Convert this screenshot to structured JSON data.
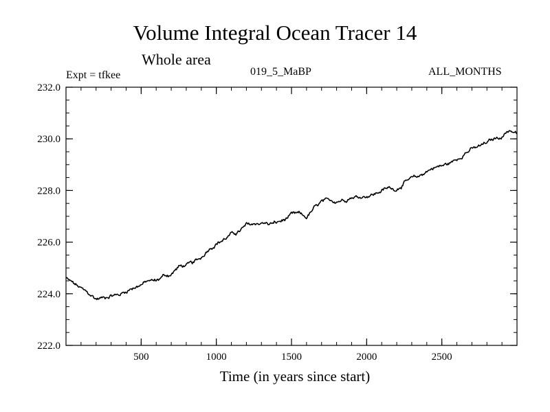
{
  "chart_data": {
    "type": "line",
    "title": "Volume Integral Ocean Tracer 14",
    "subtitle": "Whole area",
    "header_left": "Expt = tfkee",
    "header_center": "019_5_MaBP",
    "header_right": "ALL_MONTHS",
    "xlabel": "Time (in years since start)",
    "ylabel": "",
    "xlim": [
      0,
      3000
    ],
    "ylim": [
      222.0,
      232.0
    ],
    "x_ticks": [
      {
        "value": 500,
        "label": "500"
      },
      {
        "value": 1000,
        "label": "1000"
      },
      {
        "value": 1500,
        "label": "1500"
      },
      {
        "value": 2000,
        "label": "2000"
      },
      {
        "value": 2500,
        "label": "2500"
      }
    ],
    "x_minor_step": 100,
    "y_ticks": [
      {
        "value": 222.0,
        "label": "222.0"
      },
      {
        "value": 224.0,
        "label": "224.0"
      },
      {
        "value": 226.0,
        "label": "226.0"
      },
      {
        "value": 228.0,
        "label": "228.0"
      },
      {
        "value": 230.0,
        "label": "230.0"
      },
      {
        "value": 232.0,
        "label": "232.0"
      }
    ],
    "y_minor_step": 0.5,
    "grid": false,
    "legend": "none",
    "line_color": "#000000",
    "series": [
      {
        "x": [
          0,
          50,
          100,
          150,
          200,
          250,
          300,
          350,
          400,
          450,
          500,
          550,
          600,
          650,
          700,
          750,
          800,
          850,
          900,
          950,
          1000,
          1050,
          1100,
          1150,
          1200,
          1250,
          1300,
          1350,
          1400,
          1450,
          1500,
          1550,
          1600,
          1650,
          1700,
          1750,
          1800,
          1850,
          1900,
          1950,
          2000,
          2050,
          2100,
          2150,
          2200,
          2250,
          2300,
          2350,
          2400,
          2450,
          2500,
          2550,
          2600,
          2650,
          2700,
          2750,
          2800,
          2850,
          2900,
          2950,
          3000
        ],
        "values": [
          224.6,
          224.4,
          224.2,
          224.0,
          223.8,
          223.85,
          223.95,
          223.95,
          224.1,
          224.25,
          224.35,
          224.5,
          224.5,
          224.7,
          224.75,
          225.05,
          225.1,
          225.2,
          225.4,
          225.75,
          225.95,
          226.1,
          226.3,
          226.4,
          226.65,
          226.7,
          226.75,
          226.7,
          226.75,
          226.85,
          227.05,
          227.1,
          226.95,
          227.3,
          227.55,
          227.6,
          227.6,
          227.65,
          227.75,
          227.75,
          227.8,
          227.85,
          228.0,
          228.1,
          228.05,
          228.3,
          228.45,
          228.55,
          228.75,
          228.9,
          228.95,
          229.05,
          229.2,
          229.45,
          229.6,
          229.7,
          229.85,
          230.0,
          230.1,
          230.35,
          230.2
        ]
      }
    ]
  }
}
